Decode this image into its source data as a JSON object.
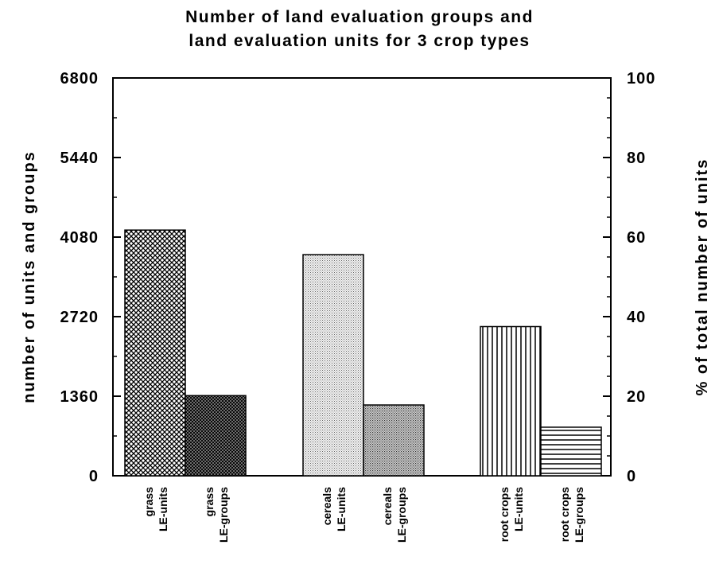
{
  "chart_data": {
    "type": "bar",
    "title": [
      "Number of land evaluation groups and",
      "land evaluation units for 3 crop types"
    ],
    "ylabel_left": "number of units and groups",
    "ylabel_right": "% of total number of units",
    "ylim_left": [
      0,
      6800
    ],
    "ylim_right": [
      0,
      100
    ],
    "yticks_left": [
      "0",
      "1360",
      "2720",
      "4080",
      "5440",
      "6800"
    ],
    "yticks_right": [
      "0",
      "20",
      "40",
      "60",
      "80",
      "100"
    ],
    "grid": false,
    "legend": "none",
    "categories": [
      [
        "grass",
        "LE-units"
      ],
      [
        "grass",
        "LE-groups"
      ],
      [
        "cereals",
        "LE-units"
      ],
      [
        "cereals",
        "LE-groups"
      ],
      [
        "root crops",
        "LE-units"
      ],
      [
        "root crops",
        "LE-groups"
      ]
    ],
    "values": [
      4200,
      1370,
      3780,
      1210,
      2550,
      830
    ],
    "fill_patterns": [
      "crosshatch",
      "dense-crosshatch",
      "fine-stipple",
      "medium-stipple",
      "vertical-lines",
      "horizontal-lines"
    ]
  }
}
